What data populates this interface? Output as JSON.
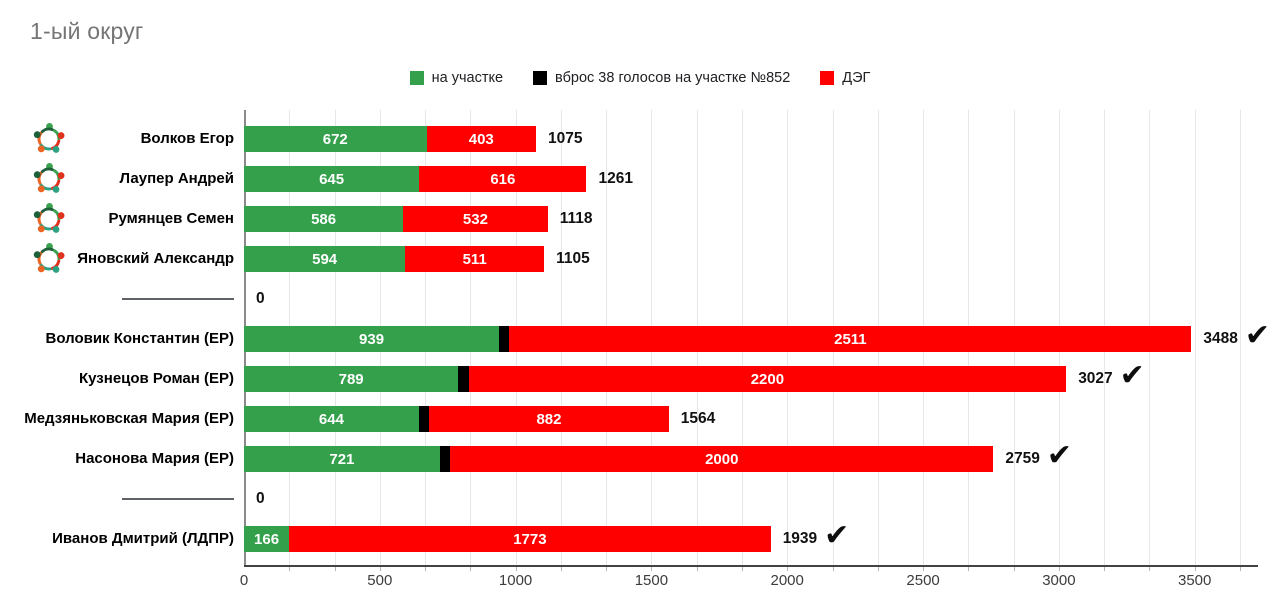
{
  "title": "1-ый округ",
  "legend": [
    {
      "label": "на участке",
      "color": "#34a04c"
    },
    {
      "label": "вброс 38 голосов на участке №852",
      "color": "#000000"
    },
    {
      "label": "ДЭГ",
      "color": "#ff0000"
    }
  ],
  "chart_data": {
    "type": "bar",
    "orientation": "horizontal",
    "stacked": true,
    "title": "1-ый округ",
    "legend_position": "top",
    "grid": "minor-vertical",
    "series": [
      {
        "key": "in-person",
        "name": "на участке",
        "color": "#34a04c"
      },
      {
        "key": "ballot-stuffing",
        "name": "вброс 38 голосов на участке №852",
        "color": "#000000"
      },
      {
        "key": "e-voting",
        "name": "ДЭГ",
        "color": "#ff0000"
      }
    ],
    "axis": {
      "min": 0,
      "max": 3700,
      "major_step": 500,
      "minor_step": 166.6667,
      "ticks": [
        0,
        500,
        1000,
        1500,
        2000,
        2500,
        3000,
        3500
      ]
    },
    "rows": [
      {
        "label": "Волков Егор",
        "icon": true,
        "divider": false,
        "values": [
          672,
          0,
          403
        ],
        "show_labels": [
          true,
          false,
          true
        ],
        "total": "1075",
        "winner": false
      },
      {
        "label": "Лаупер Андрей",
        "icon": true,
        "divider": false,
        "values": [
          645,
          0,
          616
        ],
        "show_labels": [
          true,
          false,
          true
        ],
        "total": "1261",
        "winner": false
      },
      {
        "label": "Румянцев Семен",
        "icon": true,
        "divider": false,
        "values": [
          586,
          0,
          532
        ],
        "show_labels": [
          true,
          false,
          true
        ],
        "total": "1118",
        "winner": false
      },
      {
        "label": "Яновский Александр",
        "icon": true,
        "divider": false,
        "values": [
          594,
          0,
          511
        ],
        "show_labels": [
          true,
          false,
          true
        ],
        "total": "1105",
        "winner": false
      },
      {
        "label": "",
        "icon": false,
        "divider": true,
        "values": [
          0,
          0,
          0
        ],
        "show_labels": [
          false,
          false,
          false
        ],
        "total": "0",
        "winner": false
      },
      {
        "label": "Воловик Константин (ЕР)",
        "icon": false,
        "divider": false,
        "values": [
          939,
          38,
          2511
        ],
        "show_labels": [
          true,
          false,
          true
        ],
        "total": "3488",
        "winner": true
      },
      {
        "label": "Кузнецов Роман (ЕР)",
        "icon": false,
        "divider": false,
        "values": [
          789,
          38,
          2200
        ],
        "show_labels": [
          true,
          false,
          true
        ],
        "total": "3027",
        "winner": true
      },
      {
        "label": "Медзяньковская Мария (ЕР)",
        "icon": false,
        "divider": false,
        "values": [
          644,
          38,
          882
        ],
        "show_labels": [
          true,
          false,
          true
        ],
        "total": "1564",
        "winner": false
      },
      {
        "label": "Насонова Мария (ЕР)",
        "icon": false,
        "divider": false,
        "values": [
          721,
          38,
          2000
        ],
        "show_labels": [
          true,
          false,
          true
        ],
        "total": "2759",
        "winner": true
      },
      {
        "label": "",
        "icon": false,
        "divider": true,
        "values": [
          0,
          0,
          0
        ],
        "show_labels": [
          false,
          false,
          false
        ],
        "total": "0",
        "winner": false
      },
      {
        "label": "Иванов Дмитрий (ЛДПР)",
        "icon": false,
        "divider": false,
        "values": [
          166,
          0,
          1773
        ],
        "show_labels": [
          true,
          false,
          true
        ],
        "total": "1939",
        "winner": true
      }
    ],
    "winner_mark": "✔",
    "icon_colors": [
      "#3aa34f",
      "#e0301e",
      "#2ca283",
      "#ef6323",
      "#1c5f38"
    ]
  }
}
